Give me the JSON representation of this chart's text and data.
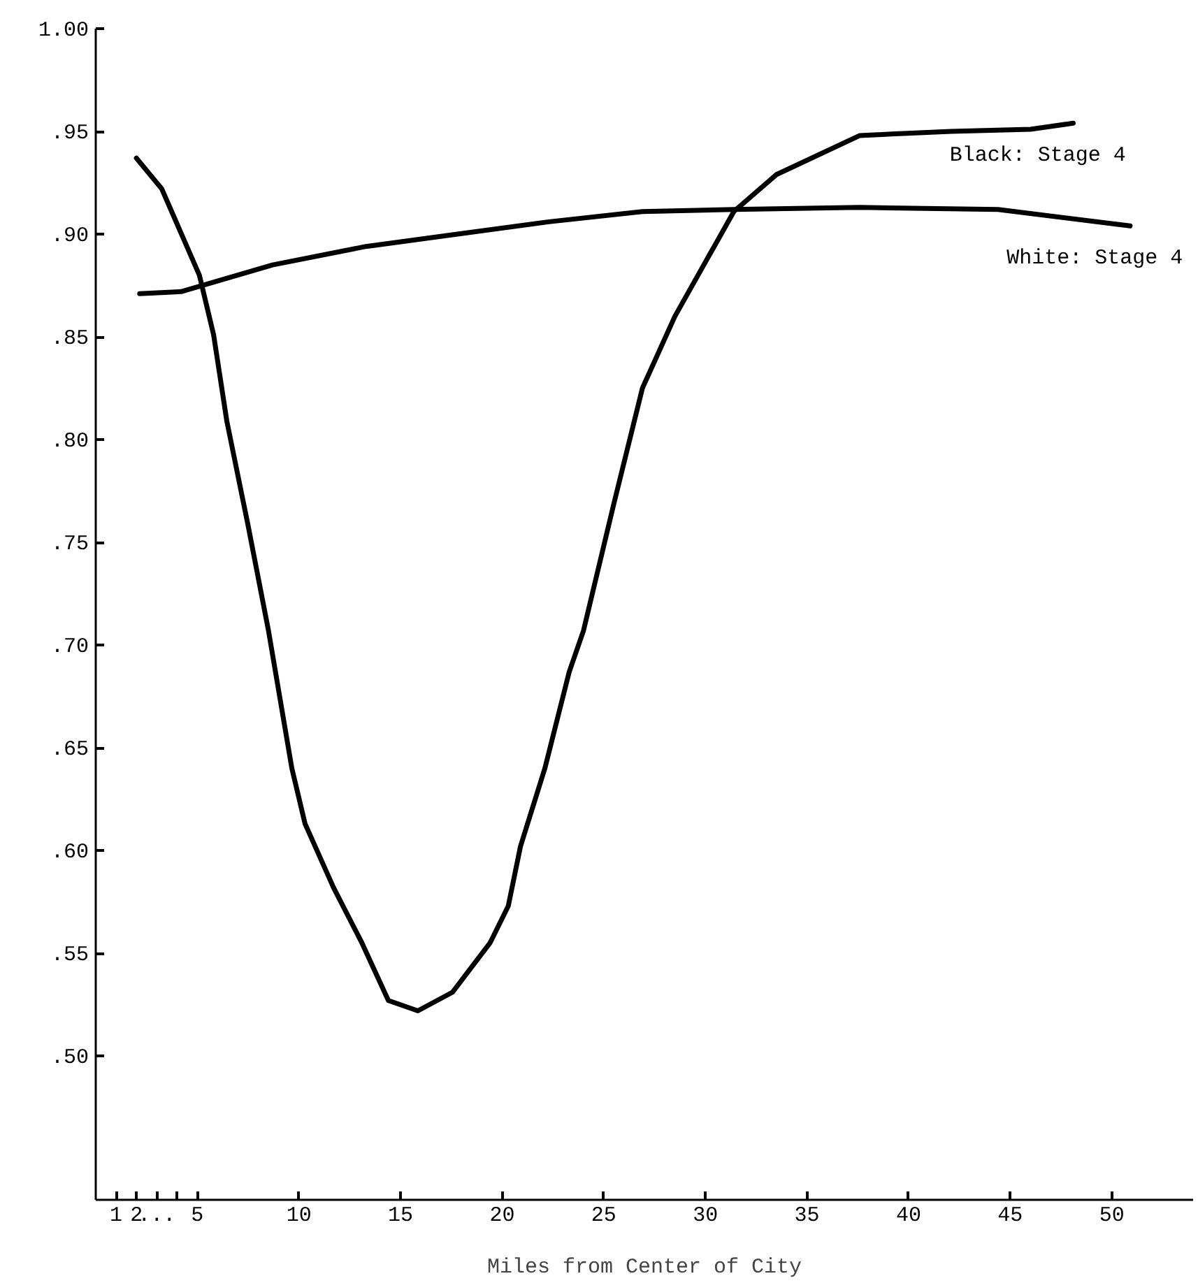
{
  "chart_data": {
    "type": "line",
    "xlabel": "Miles from Center of City",
    "xlim": [
      0,
      54
    ],
    "ylim": [
      0.43,
      1.0
    ],
    "xticks": [
      {
        "value": 1,
        "label": "1"
      },
      {
        "value": 2,
        "label": "2"
      },
      {
        "value": 3,
        "label": "..."
      },
      {
        "value": 4,
        "label": null
      },
      {
        "value": 5,
        "label": "5"
      },
      10,
      15,
      20,
      25,
      30,
      35,
      40,
      45,
      50
    ],
    "yticks": [
      {
        "value": 0.5,
        "label": ".50"
      },
      {
        "value": 0.55,
        "label": ".55"
      },
      {
        "value": 0.6,
        "label": ".60"
      },
      {
        "value": 0.65,
        "label": ".65"
      },
      {
        "value": 0.7,
        "label": ".70"
      },
      {
        "value": 0.75,
        "label": ".75"
      },
      {
        "value": 0.8,
        "label": ".80"
      },
      {
        "value": 0.85,
        "label": ".85"
      },
      {
        "value": 0.9,
        "label": ".90"
      },
      {
        "value": 0.95,
        "label": ".95"
      },
      {
        "value": 1.0,
        "label": "1.00"
      }
    ],
    "grid": false,
    "line_style": "solid",
    "marker": "none",
    "series": [
      {
        "name": "Black: Stage 4",
        "color": "#000000",
        "x": [
          2.0,
          3.25,
          5.1,
          5.8,
          6.45,
          7.5,
          8.5,
          9.65,
          10.3,
          11.7,
          13.1,
          14.4,
          15.85,
          17.55,
          19.4,
          20.3,
          20.9,
          22.1,
          23.3,
          24.0,
          25.5,
          26.9,
          28.5,
          31.4,
          33.5,
          37.6,
          42.1,
          46.0,
          48.1
        ],
        "values": [
          0.937,
          0.922,
          0.88,
          0.851,
          0.809,
          0.758,
          0.707,
          0.64,
          0.613,
          0.582,
          0.555,
          0.527,
          0.522,
          0.531,
          0.555,
          0.573,
          0.602,
          0.64,
          0.687,
          0.707,
          0.769,
          0.825,
          0.86,
          0.911,
          0.929,
          0.948,
          0.95,
          0.951,
          0.954
        ]
      },
      {
        "name": "White: Stage 4",
        "color": "#000000",
        "x": [
          2.16,
          4.2,
          8.7,
          13.3,
          17.8,
          22.3,
          26.9,
          31.4,
          37.6,
          44.4,
          50.9
        ],
        "values": [
          0.871,
          0.872,
          0.885,
          0.894,
          0.9,
          0.906,
          0.911,
          0.912,
          0.913,
          0.912,
          0.904
        ]
      }
    ]
  }
}
